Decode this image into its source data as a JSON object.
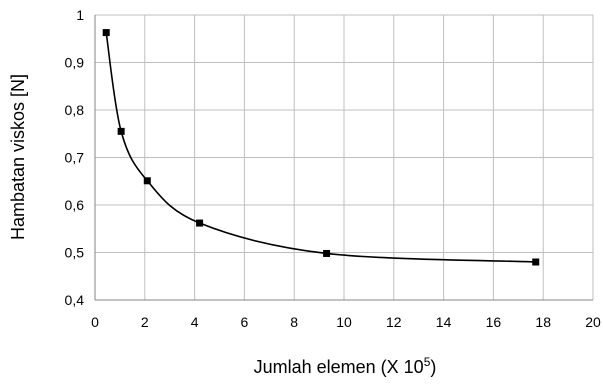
{
  "chart_data": {
    "type": "scatter",
    "smooth_line": true,
    "title": "",
    "xlabel": "Jumlah elemen (X 10",
    "xlabel_superscript": "5",
    "xlabel_suffix": ")",
    "ylabel": "Hambatan viskos [N]",
    "xlim": [
      0,
      20
    ],
    "ylim": [
      0.4,
      1.0
    ],
    "x_ticks": [
      "0",
      "2",
      "4",
      "6",
      "8",
      "10",
      "12",
      "14",
      "16",
      "18",
      "20"
    ],
    "y_ticks": [
      "0,4",
      "0,5",
      "0,6",
      "0,7",
      "0,8",
      "0,9",
      "1"
    ],
    "grid": true,
    "legend": "none",
    "marker": "square",
    "colors": {
      "line": "#000000",
      "marker": "#000000",
      "grid": "#bfbfbf",
      "axis": "#868686"
    },
    "series": [
      {
        "x": [
          0.45,
          1.05,
          2.1,
          4.2,
          9.3,
          17.7
        ],
        "y": [
          0.963,
          0.755,
          0.651,
          0.562,
          0.498,
          0.48
        ]
      }
    ]
  }
}
